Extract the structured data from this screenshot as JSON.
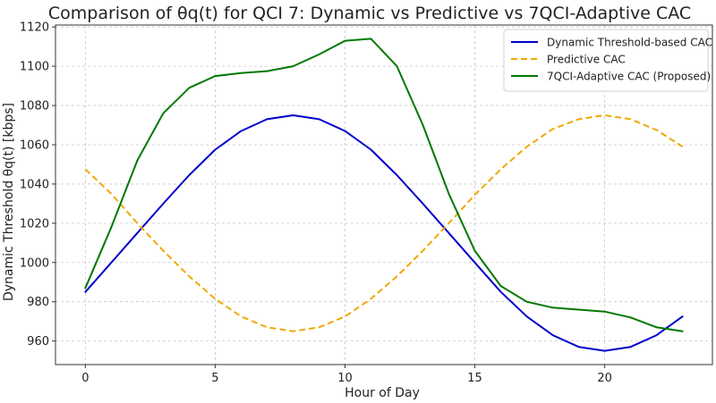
{
  "chart_data": {
    "type": "line",
    "title": "Comparison of θq(t) for QCI 7: Dynamic vs Predictive vs 7QCI-Adaptive CAC",
    "xlabel": "Hour of Day",
    "ylabel": "Dynamic Threshold θq(t) [kbps]",
    "xlim": [
      -1.15,
      24.15
    ],
    "ylim": [
      948,
      1121
    ],
    "xticks": [
      0,
      5,
      10,
      15,
      20
    ],
    "yticks": [
      960,
      980,
      1000,
      1020,
      1040,
      1060,
      1080,
      1100,
      1120
    ],
    "grid": true,
    "legend_position": "top-right",
    "x": [
      0,
      1,
      2,
      3,
      4,
      5,
      6,
      7,
      8,
      9,
      10,
      11,
      12,
      13,
      14,
      15,
      16,
      17,
      18,
      19,
      20,
      21,
      22,
      23
    ],
    "series": [
      {
        "name": "Dynamic Threshold-based CAC",
        "color": "#0000cc",
        "style": "solid",
        "values": [
          985,
          1000,
          1015,
          1030,
          1044.5,
          1057.5,
          1067,
          1073,
          1075,
          1073,
          1067,
          1057.5,
          1044.5,
          1030,
          1015,
          1000,
          985,
          972.5,
          963,
          957,
          955,
          957,
          963,
          972.5
        ]
      },
      {
        "name": "Predictive CAC",
        "color": "#f0a800",
        "style": "dashed",
        "values": [
          1047.5,
          1035,
          1020,
          1006,
          993,
          981.5,
          972.5,
          967,
          965,
          967,
          972.5,
          981.5,
          993,
          1006,
          1020,
          1034.5,
          1047.5,
          1059,
          1068,
          1073,
          1075,
          1073,
          1067.5,
          1059
        ]
      },
      {
        "name": "7QCI-Adaptive CAC (Proposed)",
        "color": "#007800",
        "style": "solid",
        "values": [
          987,
          1018,
          1052,
          1076,
          1089,
          1095,
          1096.5,
          1097.5,
          1100,
          1106,
          1113,
          1114,
          1100,
          1070,
          1035,
          1006,
          988,
          980,
          977,
          976,
          975,
          972,
          967,
          965
        ]
      }
    ]
  }
}
